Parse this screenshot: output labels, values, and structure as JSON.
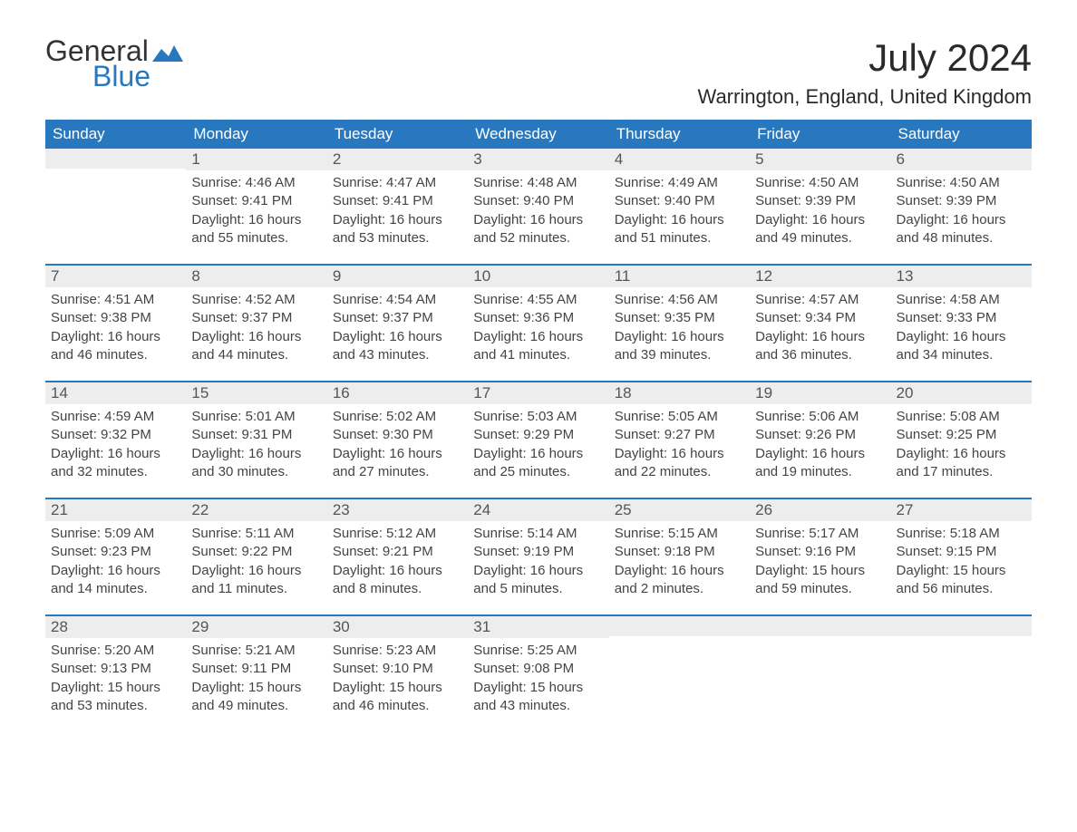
{
  "logo": {
    "text_general": "General",
    "text_blue": "Blue",
    "mark_color": "#2878c0"
  },
  "title": "July 2024",
  "location": "Warrington, England, United Kingdom",
  "colors": {
    "header_bg": "#2878c0",
    "daynum_bg": "#ededed",
    "row_border": "#2878c0",
    "text_dark": "#2a2a2a",
    "text_body": "#444444",
    "background": "#ffffff"
  },
  "weekday_labels": [
    "Sunday",
    "Monday",
    "Tuesday",
    "Wednesday",
    "Thursday",
    "Friday",
    "Saturday"
  ],
  "grid": {
    "type": "calendar",
    "columns": 7,
    "rows": 5,
    "start_offset": 1
  },
  "days": [
    {
      "n": "1",
      "sunrise": "4:46 AM",
      "sunset": "9:41 PM",
      "daylight": "16 hours and 55 minutes."
    },
    {
      "n": "2",
      "sunrise": "4:47 AM",
      "sunset": "9:41 PM",
      "daylight": "16 hours and 53 minutes."
    },
    {
      "n": "3",
      "sunrise": "4:48 AM",
      "sunset": "9:40 PM",
      "daylight": "16 hours and 52 minutes."
    },
    {
      "n": "4",
      "sunrise": "4:49 AM",
      "sunset": "9:40 PM",
      "daylight": "16 hours and 51 minutes."
    },
    {
      "n": "5",
      "sunrise": "4:50 AM",
      "sunset": "9:39 PM",
      "daylight": "16 hours and 49 minutes."
    },
    {
      "n": "6",
      "sunrise": "4:50 AM",
      "sunset": "9:39 PM",
      "daylight": "16 hours and 48 minutes."
    },
    {
      "n": "7",
      "sunrise": "4:51 AM",
      "sunset": "9:38 PM",
      "daylight": "16 hours and 46 minutes."
    },
    {
      "n": "8",
      "sunrise": "4:52 AM",
      "sunset": "9:37 PM",
      "daylight": "16 hours and 44 minutes."
    },
    {
      "n": "9",
      "sunrise": "4:54 AM",
      "sunset": "9:37 PM",
      "daylight": "16 hours and 43 minutes."
    },
    {
      "n": "10",
      "sunrise": "4:55 AM",
      "sunset": "9:36 PM",
      "daylight": "16 hours and 41 minutes."
    },
    {
      "n": "11",
      "sunrise": "4:56 AM",
      "sunset": "9:35 PM",
      "daylight": "16 hours and 39 minutes."
    },
    {
      "n": "12",
      "sunrise": "4:57 AM",
      "sunset": "9:34 PM",
      "daylight": "16 hours and 36 minutes."
    },
    {
      "n": "13",
      "sunrise": "4:58 AM",
      "sunset": "9:33 PM",
      "daylight": "16 hours and 34 minutes."
    },
    {
      "n": "14",
      "sunrise": "4:59 AM",
      "sunset": "9:32 PM",
      "daylight": "16 hours and 32 minutes."
    },
    {
      "n": "15",
      "sunrise": "5:01 AM",
      "sunset": "9:31 PM",
      "daylight": "16 hours and 30 minutes."
    },
    {
      "n": "16",
      "sunrise": "5:02 AM",
      "sunset": "9:30 PM",
      "daylight": "16 hours and 27 minutes."
    },
    {
      "n": "17",
      "sunrise": "5:03 AM",
      "sunset": "9:29 PM",
      "daylight": "16 hours and 25 minutes."
    },
    {
      "n": "18",
      "sunrise": "5:05 AM",
      "sunset": "9:27 PM",
      "daylight": "16 hours and 22 minutes."
    },
    {
      "n": "19",
      "sunrise": "5:06 AM",
      "sunset": "9:26 PM",
      "daylight": "16 hours and 19 minutes."
    },
    {
      "n": "20",
      "sunrise": "5:08 AM",
      "sunset": "9:25 PM",
      "daylight": "16 hours and 17 minutes."
    },
    {
      "n": "21",
      "sunrise": "5:09 AM",
      "sunset": "9:23 PM",
      "daylight": "16 hours and 14 minutes."
    },
    {
      "n": "22",
      "sunrise": "5:11 AM",
      "sunset": "9:22 PM",
      "daylight": "16 hours and 11 minutes."
    },
    {
      "n": "23",
      "sunrise": "5:12 AM",
      "sunset": "9:21 PM",
      "daylight": "16 hours and 8 minutes."
    },
    {
      "n": "24",
      "sunrise": "5:14 AM",
      "sunset": "9:19 PM",
      "daylight": "16 hours and 5 minutes."
    },
    {
      "n": "25",
      "sunrise": "5:15 AM",
      "sunset": "9:18 PM",
      "daylight": "16 hours and 2 minutes."
    },
    {
      "n": "26",
      "sunrise": "5:17 AM",
      "sunset": "9:16 PM",
      "daylight": "15 hours and 59 minutes."
    },
    {
      "n": "27",
      "sunrise": "5:18 AM",
      "sunset": "9:15 PM",
      "daylight": "15 hours and 56 minutes."
    },
    {
      "n": "28",
      "sunrise": "5:20 AM",
      "sunset": "9:13 PM",
      "daylight": "15 hours and 53 minutes."
    },
    {
      "n": "29",
      "sunrise": "5:21 AM",
      "sunset": "9:11 PM",
      "daylight": "15 hours and 49 minutes."
    },
    {
      "n": "30",
      "sunrise": "5:23 AM",
      "sunset": "9:10 PM",
      "daylight": "15 hours and 46 minutes."
    },
    {
      "n": "31",
      "sunrise": "5:25 AM",
      "sunset": "9:08 PM",
      "daylight": "15 hours and 43 minutes."
    }
  ],
  "labels": {
    "sunrise": "Sunrise: ",
    "sunset": "Sunset: ",
    "daylight": "Daylight: "
  },
  "typography": {
    "title_fontsize": 42,
    "location_fontsize": 22,
    "weekday_fontsize": 17,
    "daynum_fontsize": 17,
    "body_fontsize": 15
  }
}
